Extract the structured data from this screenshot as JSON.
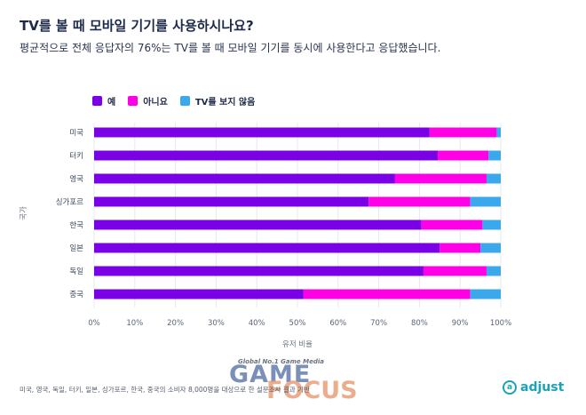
{
  "title": "TV를 볼 때 모바일 기기를 사용하시나요?",
  "subtitle": "평균적으로 전체 응답자의 76%는 TV를 볼 때 모바일 기기를 동시에 사용한다고 응답했습니다.",
  "footnote": "미국, 영국, 독일, 터키, 일본, 싱가포르, 한국, 중국의 소비자 8,000명을 대상으로 한 설문조사 결과 기반",
  "logo": {
    "text": "adjust",
    "icon_name": "adjust-logo-icon"
  },
  "watermark": {
    "small": "Global No.1 Game Media",
    "word1": "GAME",
    "word2": "FOCUS"
  },
  "chart_data": {
    "type": "bar",
    "orientation": "horizontal",
    "stacked": true,
    "categories": [
      "미국",
      "터키",
      "영국",
      "싱가포르",
      "한국",
      "일본",
      "독일",
      "중국"
    ],
    "series": [
      {
        "name": "예",
        "color": "#7a00e6",
        "values": [
          82.5,
          84.5,
          74,
          67.5,
          80.5,
          85,
          81,
          51.5
        ]
      },
      {
        "name": "아니요",
        "color": "#ff00e6",
        "values": [
          16.5,
          12.5,
          22.5,
          25,
          15,
          10,
          15.5,
          41
        ]
      },
      {
        "name": "TV를 보지 않음",
        "color": "#3aa8ea",
        "values": [
          1,
          3,
          3.5,
          7.5,
          4.5,
          5,
          3.5,
          7.5
        ]
      }
    ],
    "xlim": [
      0,
      100
    ],
    "xticks": [
      "0%",
      "10%",
      "20%",
      "30%",
      "40%",
      "50%",
      "60%",
      "70%",
      "80%",
      "90%",
      "100%"
    ],
    "xlabel": "유저 비율",
    "ylabel": "국가",
    "legend_position": "top-left",
    "grid": true
  }
}
